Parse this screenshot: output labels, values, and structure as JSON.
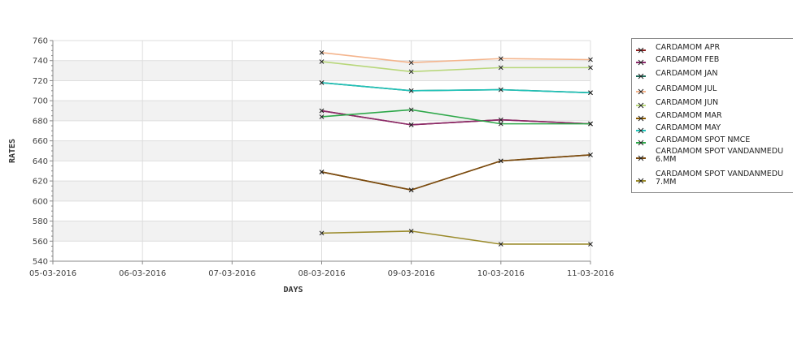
{
  "chart_data": {
    "type": "line",
    "xlabel": "DAYS",
    "ylabel": "RATES",
    "categories": [
      "05-03-2016",
      "06-03-2016",
      "07-03-2016",
      "08-03-2016",
      "09-03-2016",
      "10-03-2016",
      "11-03-2016"
    ],
    "ylim": [
      540,
      760
    ],
    "yticks": [
      540,
      560,
      580,
      600,
      620,
      640,
      660,
      680,
      700,
      720,
      740,
      760
    ],
    "grid": "on",
    "legend_position": "right",
    "series": [
      {
        "name": "CARDAMOM APR",
        "color": "#8b1f1f",
        "values": [
          null,
          null,
          null,
          690,
          676,
          681,
          677
        ]
      },
      {
        "name": "CARDAMOM FEB",
        "color": "#8b2a6b",
        "values": [
          null,
          null,
          null,
          690,
          676,
          681,
          677
        ]
      },
      {
        "name": "CARDAMOM JAN",
        "color": "#1f6b5a",
        "values": [
          null,
          null,
          null,
          718,
          710,
          711,
          708
        ]
      },
      {
        "name": "CARDAMOM JUL",
        "color": "#f4b48c",
        "values": [
          null,
          null,
          null,
          748,
          738,
          742,
          741
        ]
      },
      {
        "name": "CARDAMOM JUN",
        "color": "#b8d77a",
        "values": [
          null,
          null,
          null,
          739,
          729,
          733,
          733
        ]
      },
      {
        "name": "CARDAMOM MAR",
        "color": "#8b5a00",
        "values": [
          null,
          null,
          null,
          629,
          611,
          640,
          646
        ]
      },
      {
        "name": "CARDAMOM MAY",
        "color": "#20c2b8",
        "values": [
          null,
          null,
          null,
          718,
          710,
          711,
          708
        ]
      },
      {
        "name": "CARDAMOM SPOT NMCE",
        "color": "#2ea84a",
        "values": [
          null,
          null,
          null,
          684,
          691,
          677,
          677
        ]
      },
      {
        "name": "CARDAMOM SPOT VANDANMEDU\n6.MM",
        "color": "#7a4a10",
        "values": [
          null,
          null,
          null,
          629,
          611,
          640,
          646
        ]
      },
      {
        "name": "CARDAMOM SPOT VANDANMEDU\n7.MM",
        "color": "#9a8a2a",
        "values": [
          null,
          null,
          null,
          568,
          570,
          557,
          557
        ]
      }
    ]
  }
}
